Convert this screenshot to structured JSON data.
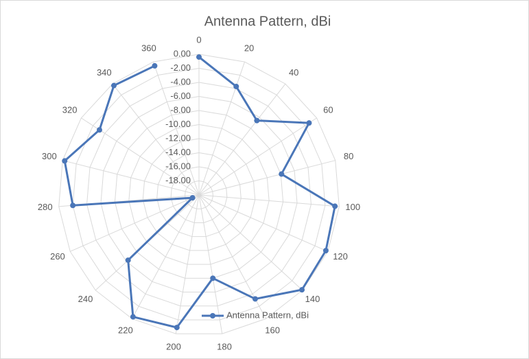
{
  "chart_data": {
    "type": "radar",
    "title": "Antenna Pattern, dBi",
    "categories": [
      "0",
      "20",
      "40",
      "60",
      "80",
      "100",
      "120",
      "140",
      "160",
      "180",
      "200",
      "220",
      "240",
      "260",
      "280",
      "300",
      "320",
      "340",
      "360"
    ],
    "series": [
      {
        "name": "Antenna Pattern, dBi",
        "color": "#4a76b8",
        "values": [
          -0.4,
          -3.7,
          -6.6,
          -1.3,
          -7.9,
          -0.6,
          -0.3,
          -0.1,
          -3.2,
          -8.0,
          -0.9,
          -0.3,
          -6.3,
          -19.0,
          -2.0,
          -0.3,
          -3.1,
          -0.3,
          -0.6
        ]
      }
    ],
    "ylim": [
      -20,
      0
    ],
    "yticks": [
      {
        "value": 0,
        "label": "0.00"
      },
      {
        "value": -2,
        "label": "-2.00"
      },
      {
        "value": -4,
        "label": "-4.00"
      },
      {
        "value": -6,
        "label": "-6.00"
      },
      {
        "value": -8,
        "label": "-8.00"
      },
      {
        "value": -10,
        "label": "-10.00"
      },
      {
        "value": -12,
        "label": "-12.00"
      },
      {
        "value": -14,
        "label": "-14.00"
      },
      {
        "value": -16,
        "label": "-16.00"
      },
      {
        "value": -18,
        "label": "-18.00"
      }
    ],
    "grid": true,
    "legend": "bottom"
  }
}
